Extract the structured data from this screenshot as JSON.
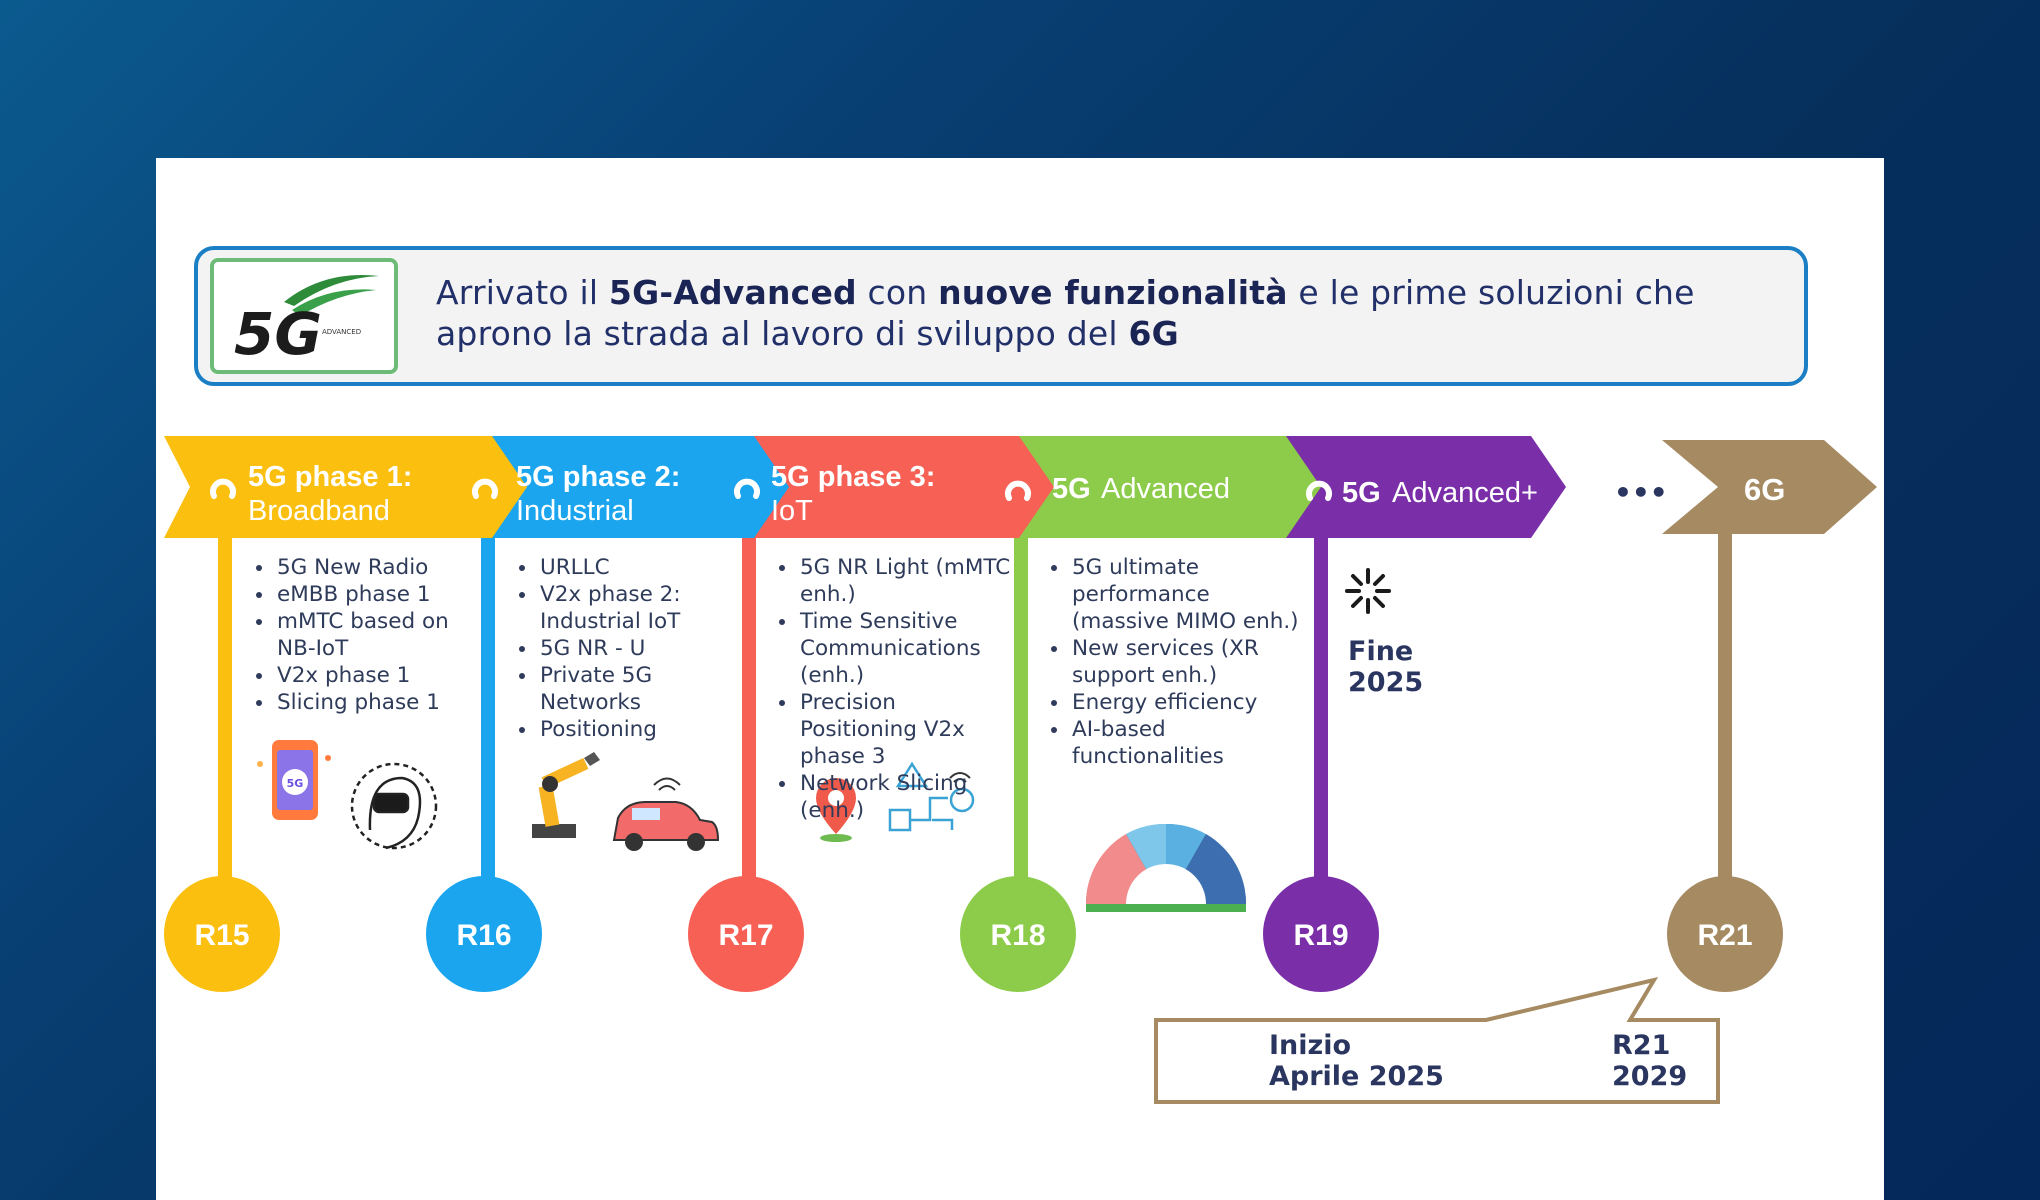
{
  "banner": {
    "text_parts": [
      {
        "text": "Arrivato il ",
        "bold": false
      },
      {
        "text": "5G-Advanced",
        "bold": true
      },
      {
        "text": " con ",
        "bold": false
      },
      {
        "text": "nuove funzionalità",
        "bold": true
      },
      {
        "text": " e le prime soluzioni che apro­no la strada al lavoro di sviluppo del ",
        "bold": false
      },
      {
        "text": "6G",
        "bold": true
      }
    ],
    "line1": [
      "Arrivato il ",
      "5G-Advanced",
      " con ",
      "nuove funzionalità",
      " e le prime soluzioni che"
    ],
    "line2": [
      "aprono la strada al lavoro di sviluppo del ",
      "6G"
    ]
  },
  "logo": {
    "text": "5G",
    "subtext": "ADVANCED"
  },
  "phases": [
    {
      "id": "r15",
      "title": "5G phase 1:",
      "subtitle": "Broadband",
      "release": "R15",
      "color": "#fbbf10",
      "bullets": [
        "5G New Radio",
        "eMBB phase 1",
        "mMTC based on NB-IoT",
        "V2x phase 1",
        "Slicing phase 1"
      ],
      "illustrations": [
        "smartphone-5g-icon",
        "vr-headset-icon"
      ]
    },
    {
      "id": "r16",
      "title": "5G phase 2:",
      "subtitle": "Industrial",
      "release": "R16",
      "color": "#1aa5ee",
      "bullets": [
        "URLLC",
        "V2x phase 2: Industrial IoT",
        "5G NR - U",
        "Private 5G Networks",
        "Positioning"
      ],
      "illustrations": [
        "robot-arm-icon",
        "connected-car-icon"
      ]
    },
    {
      "id": "r17",
      "title": "5G phase 3:",
      "subtitle": "IoT",
      "release": "R17",
      "color": "#f76055",
      "bullets": [
        "5G NR Light (mMTC enh.)",
        "Time Sensitive Communications (enh.)",
        "Precision Positioning V2x phase 3",
        "Network Slicing (enh.)"
      ],
      "illustrations": [
        "location-pin-icon",
        "network-devices-icon"
      ]
    },
    {
      "id": "r18",
      "title": "5G",
      "subtitle": "Advanced",
      "release": "R18",
      "color": "#8ccc4a",
      "bullets": [
        "5G ultimate performance (massive MIMO enh.)",
        "New services (XR support enh.)",
        "Energy efficiency",
        "AI-based functionalities"
      ],
      "illustrations": [
        "semicircle-services-icon"
      ]
    },
    {
      "id": "r19",
      "title": "5G",
      "subtitle": "Advanced+",
      "release": "R19",
      "color": "#7a2fa8",
      "bullets": [],
      "illustrations": []
    },
    {
      "id": "r21",
      "title": "6G",
      "subtitle": "",
      "release": "R21",
      "color": "#a58a62",
      "bullets": [],
      "illustrations": []
    }
  ],
  "ellipsis": "•••",
  "milestone_fine": {
    "line1": "Fine",
    "line2": "2025"
  },
  "callout": {
    "left_line1": "Inizio",
    "left_line2": "Aprile 2025",
    "right_line1": "R21",
    "right_line2": "2029"
  }
}
